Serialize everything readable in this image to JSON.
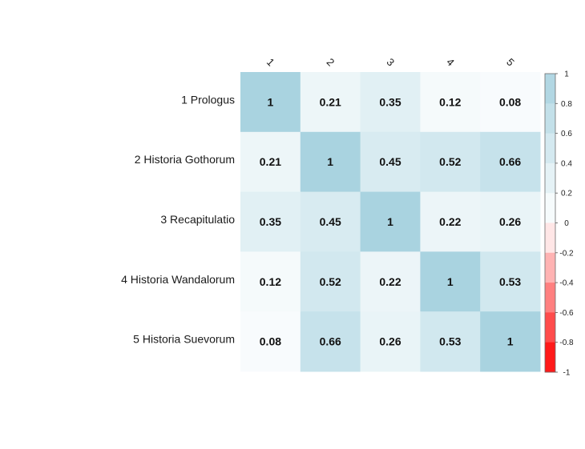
{
  "chart_data": {
    "type": "heatmap",
    "row_labels": [
      "1 Prologus",
      "2 Historia Gothorum",
      "3 Recapitulatio",
      "4 Historia Wandalorum",
      "5 Historia Suevorum"
    ],
    "col_labels": [
      "1",
      "2",
      "3",
      "4",
      "5"
    ],
    "values": [
      [
        1,
        0.21,
        0.35,
        0.12,
        0.08
      ],
      [
        0.21,
        1,
        0.45,
        0.52,
        0.66
      ],
      [
        0.35,
        0.45,
        1,
        0.22,
        0.26
      ],
      [
        0.12,
        0.52,
        0.22,
        1,
        0.53
      ],
      [
        0.08,
        0.66,
        0.26,
        0.53,
        1
      ]
    ],
    "cell_labels": [
      [
        "1",
        "0.21",
        "0.35",
        "0.12",
        "0.08"
      ],
      [
        "0.21",
        "1",
        "0.45",
        "0.52",
        "0.66"
      ],
      [
        "0.35",
        "0.45",
        "1",
        "0.22",
        "0.26"
      ],
      [
        "0.12",
        "0.52",
        "0.22",
        "1",
        "0.53"
      ],
      [
        "0.08",
        "0.66",
        "0.26",
        "0.53",
        "1"
      ]
    ],
    "legend": {
      "range": [
        -1,
        1
      ],
      "ticks": [
        1,
        0.8,
        0.6,
        0.4,
        0.2,
        0,
        -0.2,
        -0.4,
        -0.6,
        -0.8,
        -1
      ],
      "placement": "right"
    },
    "colors": {
      "positive_max": "#a9d3e0",
      "neutral": "#ffffff",
      "negative_max": "#ff0000"
    }
  }
}
